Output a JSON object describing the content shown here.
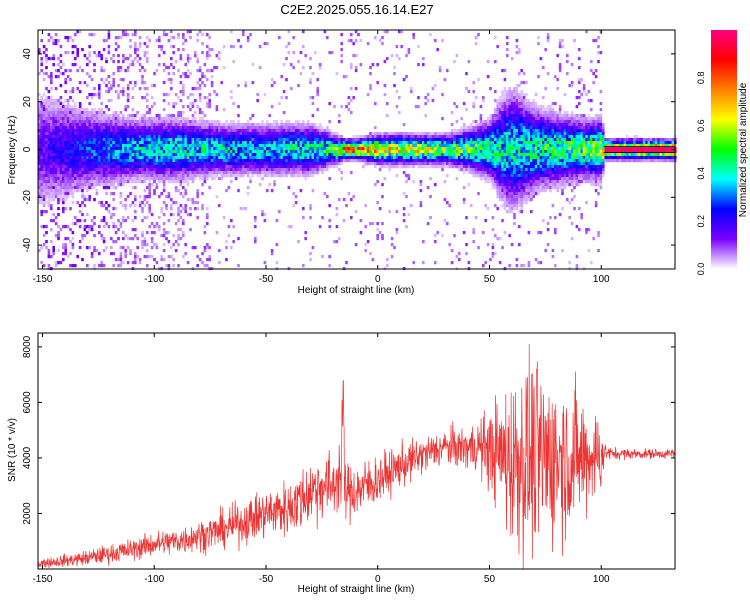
{
  "chart_data": [
    {
      "type": "heatmap",
      "title": "C2E2.2025.055.16.14.E27",
      "xlabel": "Height of straight line (km)",
      "ylabel": "Frequency (Hz)",
      "xlim": [
        -152,
        133
      ],
      "ylim": [
        -50,
        50
      ],
      "xticks": [
        "-150",
        "-100",
        "-50",
        "0",
        "50",
        "100"
      ],
      "yticks": [
        "-40",
        "-20",
        "0",
        "20",
        "40"
      ],
      "colorbar": {
        "label": "Normalized spectral amplitude",
        "range": [
          0,
          1
        ],
        "ticks": [
          "0.0",
          "0.2",
          "0.4",
          "0.6",
          "0.8"
        ],
        "colors": [
          "#ffffff",
          "#7a00ff",
          "#0000ff",
          "#00ffff",
          "#00ff00",
          "#ffff00",
          "#ff8000",
          "#ff0000",
          "#ff0080"
        ]
      },
      "band_profile": {
        "heights_km": [
          -152,
          -130,
          -110,
          -90,
          -70,
          -50,
          -30,
          -20,
          -15,
          -10,
          0,
          10,
          20,
          30,
          40,
          50,
          55,
          60,
          70,
          80,
          90,
          100,
          101,
          133
        ],
        "peak_amplitude": [
          0.18,
          0.3,
          0.42,
          0.45,
          0.44,
          0.42,
          0.48,
          0.56,
          0.92,
          0.95,
          0.72,
          0.7,
          0.68,
          0.62,
          0.6,
          0.48,
          0.46,
          0.45,
          0.5,
          0.52,
          0.56,
          0.62,
          0.97,
          0.98
        ],
        "half_width_hz": [
          12,
          8,
          6,
          6,
          5,
          5,
          5,
          3,
          2,
          2,
          3,
          3,
          3,
          3,
          4,
          6,
          10,
          12,
          8,
          7,
          6,
          6,
          2,
          2
        ]
      }
    },
    {
      "type": "line",
      "title": "",
      "xlabel": "Height of straight line (km)",
      "ylabel": "SNR (10 * v/v)",
      "xlim": [
        -152,
        133
      ],
      "ylim": [
        0,
        8500
      ],
      "xticks": [
        "-150",
        "-100",
        "-50",
        "0",
        "50",
        "100"
      ],
      "yticks": [
        "2000",
        "4000",
        "6000",
        "8000"
      ],
      "color": "#ee3333",
      "x": [
        -152,
        -140,
        -130,
        -120,
        -110,
        -100,
        -90,
        -80,
        -70,
        -60,
        -50,
        -40,
        -35,
        -30,
        -25,
        -20,
        -17,
        -15,
        -10,
        -5,
        0,
        5,
        10,
        20,
        30,
        40,
        45,
        50,
        55,
        60,
        65,
        70,
        75,
        80,
        85,
        90,
        95,
        100,
        102,
        105,
        110,
        120,
        133
      ],
      "y": [
        200,
        300,
        400,
        550,
        700,
        900,
        1000,
        1200,
        1400,
        1700,
        2000,
        2200,
        2450,
        2800,
        3000,
        3000,
        3500,
        2800,
        2800,
        3000,
        3200,
        3450,
        3700,
        4100,
        4400,
        4350,
        4450,
        4300,
        4100,
        3950,
        4000,
        4000,
        4000,
        4000,
        3950,
        4000,
        4050,
        4150,
        4200,
        4150,
        4150,
        4150,
        4150
      ],
      "spread": [
        150,
        200,
        250,
        300,
        350,
        400,
        450,
        500,
        600,
        700,
        800,
        900,
        1000,
        1100,
        1100,
        1100,
        1200,
        1000,
        900,
        900,
        800,
        700,
        700,
        600,
        600,
        700,
        900,
        1300,
        2000,
        2800,
        3200,
        3100,
        3000,
        2700,
        2400,
        2200,
        1700,
        1300,
        250,
        200,
        180,
        160,
        160
      ]
    }
  ]
}
